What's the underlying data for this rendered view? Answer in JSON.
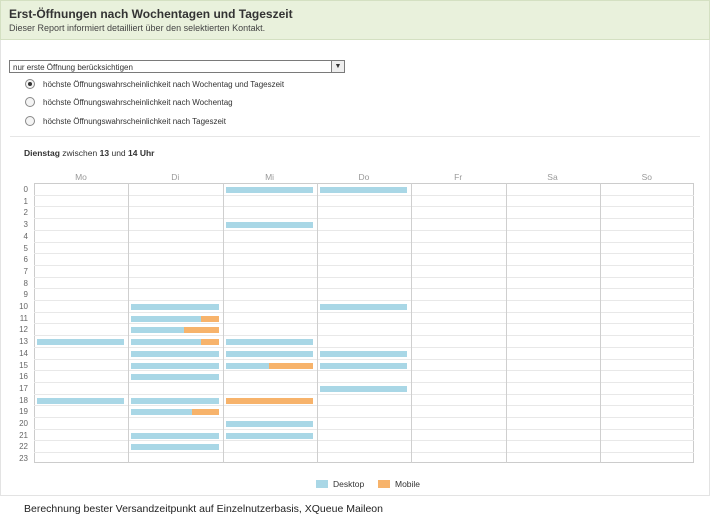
{
  "header": {
    "title": "Erst-Öffnungen nach Wochentagen und Tageszeit",
    "subtitle": "Dieser Report informiert detailliert über den selektierten Kontakt."
  },
  "filter": {
    "selected": "nur erste Öffnung berücksichtigen"
  },
  "options": [
    {
      "label": "höchste Öffnungswahrscheinlichkeit nach Wochentag und Tageszeit",
      "checked": true
    },
    {
      "label": "höchste Öffnungswahrscheinlichkeit nach Wochentag",
      "checked": false
    },
    {
      "label": "höchste Öffnungswahrscheinlichkeit nach Tageszeit",
      "checked": false
    }
  ],
  "best": {
    "day": "Dienstag",
    "word1": "zwischen",
    "from": "13",
    "word2": "und",
    "to": "14 Uhr"
  },
  "colors": {
    "desktop": "#a9d7e6",
    "mobile": "#f7b36b"
  },
  "chart_data": {
    "type": "heatmap",
    "days": [
      "Mo",
      "Di",
      "Mi",
      "Do",
      "Fr",
      "Sa",
      "So"
    ],
    "hours": [
      "0",
      "1",
      "2",
      "3",
      "4",
      "5",
      "6",
      "7",
      "8",
      "9",
      "10",
      "11",
      "12",
      "13",
      "14",
      "15",
      "16",
      "17",
      "18",
      "19",
      "20",
      "21",
      "22",
      "23"
    ],
    "legend": [
      "Desktop",
      "Mobile"
    ],
    "entries": [
      {
        "day": 2,
        "hour": 0,
        "desktop": 1.0,
        "mobile": 0
      },
      {
        "day": 3,
        "hour": 0,
        "desktop": 1.0,
        "mobile": 0
      },
      {
        "day": 2,
        "hour": 3,
        "desktop": 1.0,
        "mobile": 0
      },
      {
        "day": 1,
        "hour": 10,
        "desktop": 1.0,
        "mobile": 0
      },
      {
        "day": 3,
        "hour": 10,
        "desktop": 1.0,
        "mobile": 0
      },
      {
        "day": 1,
        "hour": 11,
        "desktop": 0.8,
        "mobile": 0.2
      },
      {
        "day": 1,
        "hour": 12,
        "desktop": 0.6,
        "mobile": 0.4
      },
      {
        "day": 0,
        "hour": 13,
        "desktop": 1.0,
        "mobile": 0
      },
      {
        "day": 1,
        "hour": 13,
        "desktop": 0.8,
        "mobile": 0.2
      },
      {
        "day": 2,
        "hour": 13,
        "desktop": 1.0,
        "mobile": 0
      },
      {
        "day": 1,
        "hour": 14,
        "desktop": 1.0,
        "mobile": 0
      },
      {
        "day": 2,
        "hour": 14,
        "desktop": 1.0,
        "mobile": 0
      },
      {
        "day": 3,
        "hour": 14,
        "desktop": 1.0,
        "mobile": 0
      },
      {
        "day": 1,
        "hour": 15,
        "desktop": 1.0,
        "mobile": 0
      },
      {
        "day": 2,
        "hour": 15,
        "desktop": 0.5,
        "mobile": 0.5
      },
      {
        "day": 3,
        "hour": 15,
        "desktop": 1.0,
        "mobile": 0
      },
      {
        "day": 1,
        "hour": 16,
        "desktop": 1.0,
        "mobile": 0
      },
      {
        "day": 3,
        "hour": 17,
        "desktop": 1.0,
        "mobile": 0
      },
      {
        "day": 0,
        "hour": 18,
        "desktop": 1.0,
        "mobile": 0
      },
      {
        "day": 1,
        "hour": 18,
        "desktop": 1.0,
        "mobile": 0
      },
      {
        "day": 2,
        "hour": 18,
        "desktop": 0,
        "mobile": 1.0
      },
      {
        "day": 1,
        "hour": 19,
        "desktop": 0.7,
        "mobile": 0.3
      },
      {
        "day": 2,
        "hour": 20,
        "desktop": 1.0,
        "mobile": 0
      },
      {
        "day": 1,
        "hour": 21,
        "desktop": 1.0,
        "mobile": 0
      },
      {
        "day": 2,
        "hour": 21,
        "desktop": 1.0,
        "mobile": 0
      },
      {
        "day": 1,
        "hour": 22,
        "desktop": 1.0,
        "mobile": 0
      }
    ]
  },
  "caption": "Berechnung bester Versandzeitpunkt auf Einzelnutzerbasis, XQueue Maileon"
}
